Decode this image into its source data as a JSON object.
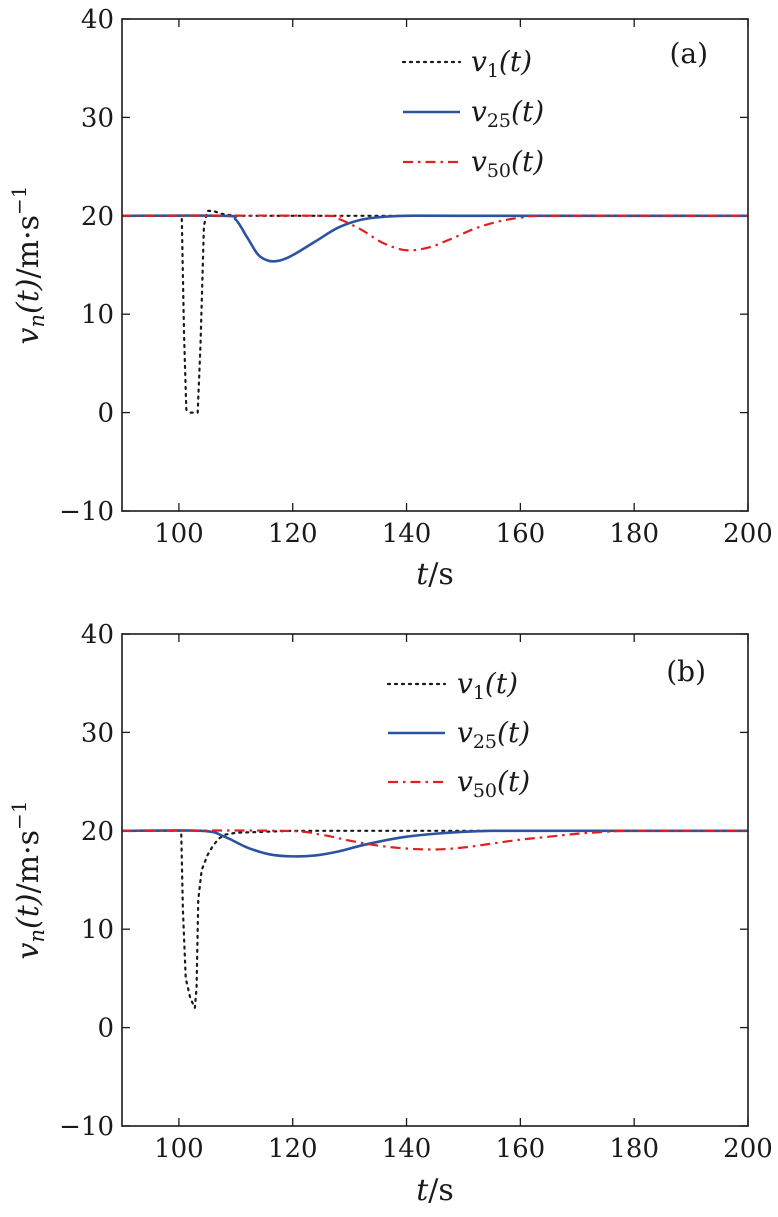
{
  "chart_data": [
    {
      "type": "line",
      "panel_label": "(a)",
      "xlabel_var": "t",
      "xlabel_unit": "/s",
      "ylabel_var": "v",
      "ylabel_sub": "n",
      "ylabel_arg": "(t)",
      "ylabel_unit": "/m·s",
      "ylabel_exp": "−1",
      "xlim": [
        90,
        200
      ],
      "ylim": [
        -10,
        40
      ],
      "xticks": [
        100,
        120,
        140,
        160,
        180,
        200
      ],
      "yticks": [
        -10,
        0,
        10,
        20,
        30,
        40
      ],
      "xtick_labels": [
        "100",
        "120",
        "140",
        "160",
        "180",
        "200"
      ],
      "ytick_labels": [
        "−10",
        "0",
        "10",
        "20",
        "30",
        "40"
      ],
      "series": [
        {
          "name": "v1(t)",
          "var": "v",
          "sub": "1",
          "arg": "(t)",
          "style": "dotted",
          "color": "#1a1a1a",
          "x": [
            90,
            100.5,
            100.9,
            101.3,
            102,
            103.3,
            103.8,
            104.4,
            105,
            106,
            107.5,
            110,
            115,
            125,
            130,
            140,
            200
          ],
          "y": [
            20,
            20,
            8,
            0.3,
            0,
            0,
            7,
            19,
            20.5,
            20.5,
            20.2,
            20,
            20,
            20,
            20,
            20,
            20
          ]
        },
        {
          "name": "v25(t)",
          "var": "v",
          "sub": "25",
          "arg": "(t)",
          "style": "solid",
          "color": "#2b54a0",
          "x": [
            90,
            108,
            110,
            112,
            114,
            116,
            118,
            120,
            124,
            128,
            132,
            136,
            140,
            150,
            200
          ],
          "y": [
            20,
            20,
            19.6,
            17.8,
            16,
            15.4,
            15.5,
            16,
            17.4,
            18.8,
            19.6,
            19.9,
            20,
            20,
            20
          ],
          "interp": "smooth"
        },
        {
          "name": "v50(t)",
          "var": "v",
          "sub": "50",
          "arg": "(t)",
          "style": "dashdot",
          "color": "#e02020",
          "x": [
            90,
            125,
            128,
            132,
            136,
            140,
            144,
            148,
            152,
            156,
            160,
            165,
            200
          ],
          "y": [
            20,
            20,
            19.7,
            18.6,
            17.2,
            16.5,
            16.8,
            17.7,
            18.7,
            19.4,
            19.8,
            20,
            20
          ],
          "interp": "smooth"
        }
      ],
      "legend_position": "top-right"
    },
    {
      "type": "line",
      "panel_label": "(b)",
      "xlabel_var": "t",
      "xlabel_unit": "/s",
      "ylabel_var": "v",
      "ylabel_sub": "n",
      "ylabel_arg": "(t)",
      "ylabel_unit": "/m·s",
      "ylabel_exp": "−1",
      "xlim": [
        90,
        200
      ],
      "ylim": [
        -10,
        40
      ],
      "xticks": [
        100,
        120,
        140,
        160,
        180,
        200
      ],
      "yticks": [
        -10,
        0,
        10,
        20,
        30,
        40
      ],
      "xtick_labels": [
        "100",
        "120",
        "140",
        "160",
        "180",
        "200"
      ],
      "ytick_labels": [
        "−10",
        "0",
        "10",
        "20",
        "30",
        "40"
      ],
      "series": [
        {
          "name": "v1(t)",
          "var": "v",
          "sub": "1",
          "arg": "(t)",
          "style": "dotted",
          "color": "#1a1a1a",
          "x": [
            90,
            100.4,
            100.7,
            101.2,
            102,
            102.8,
            103.1,
            103.4,
            104,
            105,
            106,
            107,
            108,
            110,
            115,
            120,
            130,
            150,
            200
          ],
          "y": [
            20,
            20,
            12,
            5,
            3,
            2,
            4,
            13,
            16,
            17.5,
            18.5,
            19.2,
            19.6,
            19.8,
            19.9,
            20,
            20,
            20,
            20
          ]
        },
        {
          "name": "v25(t)",
          "var": "v",
          "sub": "25",
          "arg": "(t)",
          "style": "solid",
          "color": "#2b54a0",
          "x": [
            90,
            104,
            108,
            112,
            116,
            120,
            124,
            128,
            132,
            136,
            140,
            145,
            150,
            155,
            160,
            200
          ],
          "y": [
            20,
            20,
            19.4,
            18.3,
            17.6,
            17.4,
            17.5,
            17.9,
            18.5,
            19,
            19.4,
            19.7,
            19.9,
            20,
            20,
            20
          ],
          "interp": "smooth"
        },
        {
          "name": "v50(t)",
          "var": "v",
          "sub": "50",
          "arg": "(t)",
          "style": "dashdot",
          "color": "#e02020",
          "x": [
            90,
            118,
            125,
            130,
            135,
            140,
            145,
            150,
            155,
            160,
            165,
            170,
            175,
            180,
            200
          ],
          "y": [
            20,
            20,
            19.6,
            19,
            18.5,
            18.2,
            18.1,
            18.3,
            18.7,
            19.1,
            19.4,
            19.7,
            19.9,
            20,
            20
          ],
          "interp": "smooth"
        }
      ],
      "legend_position": "top-right"
    }
  ]
}
